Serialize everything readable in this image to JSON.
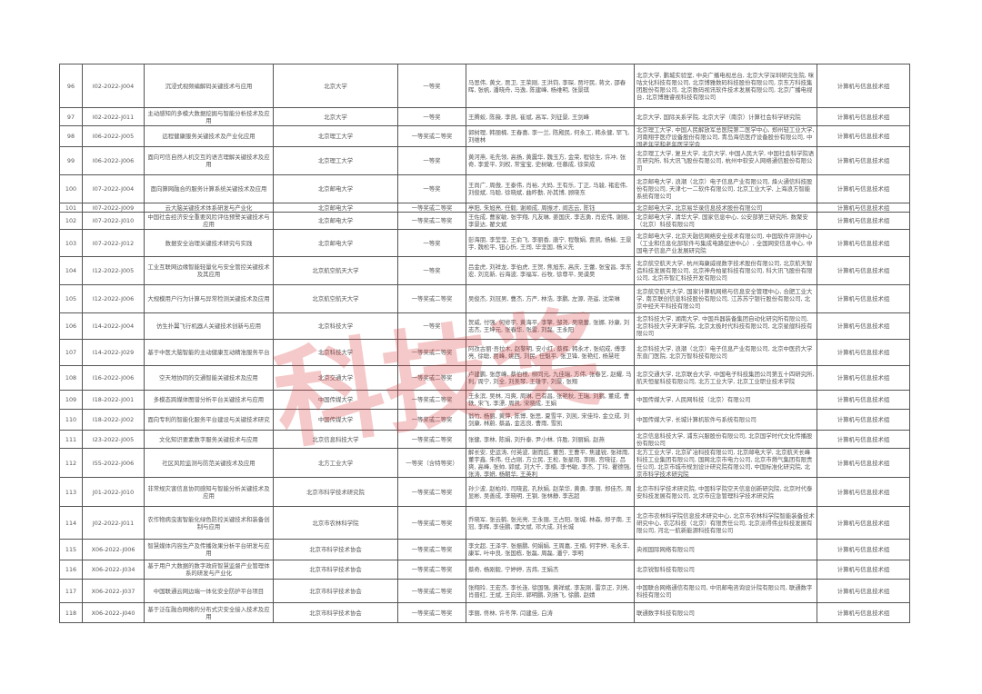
{
  "watermark": "科技奖",
  "rows": [
    {
      "no": "96",
      "code": "I02-2022-J004",
      "project": "沉浸式视频编解码关键技术与应用",
      "institution": "北京大学",
      "award": "一等奖",
      "persons": "马思伟, 黄文, 贾卫, 王荣刚, 王洪钧, 李琛, 贾圩民, 蒋文, 邵春晖, 张帆, 潘晓舟, 马逸, 陈建峰, 杨维明, 张景琪",
      "units": "北京大学, 鹏城实验室, 中央广播电视总台, 北京大学深圳研究生院, 咪咕文化科技有限公司, 北京博雅数码科技股份有限公司, 京东方科技集团股份有限公司, 北京数码视讯软件技术发展有限公司, 北京广播电视台, 北京博雅睿视科技有限公司",
      "category": "计算机与信息技术组"
    },
    {
      "no": "97",
      "code": "I02-2022-J011",
      "project": "主动感知的多模大数据挖掘与智能分析技术及应用",
      "institution": "北京大学",
      "award": "一等奖",
      "persons": "王腾蛟, 陈薇, 李凯, 崔斌, 高军, 刘征景, 王剑峰",
      "units": "北京大学, 国际关系学院, 北京大学（南京）计算社会科学研究院",
      "category": "计算机与信息技术组"
    },
    {
      "no": "98",
      "code": "I06-2022-J005",
      "project": "远程健康服务关键技术及产业化应用",
      "institution": "北京理工大学",
      "award": "一等奖或二等奖",
      "persons": "郭树理, 韩丽楠, 王春喜, 李一兰, 陈殿民, 何永工, 韩永健, 罕飞, 刘维林",
      "units": "北京理工大学, 中国人民解放军总医院第二医学中心, 郑州轻工业大学, 河南翔宇医疗设备股份有限公司, 青岛海信医疗设备股份有限公司, 中国老年学和老年医学学会",
      "category": "计算机与信息技术组"
    },
    {
      "no": "99",
      "code": "I06-2022-J006",
      "project": "面向可信自然人机交互的语言理解关键技术及应用",
      "institution": "北京理工大学",
      "award": "一等奖",
      "persons": "黄河燕, 毛先领, 高扬, 黄震华, 魏玉方, 金荣, 程徐生, 许冲, 张奇, 李爱平, 刘权, 常宝宝, 史树敏, 任慕成, 徐荣成",
      "units": "北京理工大学, 复旦大学, 北京大学, 中国人民大学, 中国社会科学院语言研究所, 科大讯飞股份有限公司, 杭州中软安人网络通信股份有限公司",
      "category": "计算机与信息技术组"
    },
    {
      "no": "100",
      "code": "I07-2022-J004",
      "project": "面向算网融合的服务计算系统关键技术及应用",
      "institution": "北京邮电大学",
      "award": "一等奖",
      "persons": "王尚广, 周傲, 王泰伟, 肖裕, 大妈, 王有乐, 丁正, 马骏, 褚宏伟, 刘俊斌, 马聪, 徐晓斌, 曲昨勤, 孙其博, 顾晓东",
      "units": "北京邮电大学, 浪潮（北京）电子信息产业有限公司, 烽火通信科技股份有限公司, 天津七一二软件有限公司, 北京工业大学, 上海浪方智能系统有限公司",
      "category": "计算机与信息技术组"
    },
    {
      "no": "101",
      "code": "I07-2022-J009",
      "project": "云大脑关键技术体系研发与产业化",
      "institution": "北京邮电大学",
      "award": "一等奖或二等奖",
      "persons": "亭阳, 朱旭亮, 任毅, 谢顺成, 周振才, 阎志云, 陈钰",
      "units": "北京邮电大学, 北京易华录信息技术股份有限公司",
      "category": "计算机与信息技术组"
    },
    {
      "no": "102",
      "code": "I07-2022-J010",
      "project": "中国社会经济安全重要风险评估预警关键技术与应用",
      "institution": "北京邮电大学",
      "award": "一等奖或二等奖",
      "persons": "王佐成, 曹家敏, 张宇翔, 凡友琳, 姜国庆, 李志勇, 肖宏伟, 谢刚, 李景达, 翟文斌",
      "units": "北京邮电大学, 清华大学, 国家信息中心, 公安部第三研究所, 数聚安（北京）科技有限公司",
      "category": "计算机与信息技术组"
    },
    {
      "no": "103",
      "code": "I07-2022-J012",
      "project": "数据安全治理关键技术研究与实践",
      "institution": "北京邮电大学",
      "award": "一等奖",
      "persons": "彭海朋, 李莹莹, 王俞飞, 李丽香, 唐宁, 程敬娟, 贾凯, 杨榆, 王景宇, 魏松平, 钮心忻, 王闯, 毕坚国, 杨义先",
      "units": "北京邮电大学, 北京天融信网络安全技术有限公司, 中国软件评测中心（工业和信息化部软件与集成电路促进中心）, 全国网安信息中心, 中国电子信息产业发展研究院",
      "category": "计算机与信息技术组"
    },
    {
      "no": "104",
      "code": "I12-2022-J005",
      "project": "工业互联网边缘智能轻量化与安全管控关键技术及其应用",
      "institution": "北京航空航天大学",
      "award": "一等奖",
      "persons": "吕金虎, 刘祥龙, 李伯虎, 王贺, 焦旭东, 高庆, 王蕾, 张宝昌, 李东宏, 刘克新, 谷海波, 李福军, 谷牧, 徐尊平, 吴谟昊",
      "units": "北京航空航天大学, 杭州海康威视数字技术股份有限公司, 北京航天智造科技发展有限公司, 北京神舟柏星科技有限公司, 科大讯飞股份有限公司, 北京市智汇科技开发有限公司",
      "category": "计算机与信息技术组"
    },
    {
      "no": "105",
      "code": "I12-2022-J006",
      "project": "大规模用户行为计算与异常检测关键技术及应用",
      "institution": "北京航空航天大学",
      "award": "一等奖或二等奖",
      "persons": "吴俊杰, 刘冠男, 曹杰, 方严, 林浩, 李鹏, 左源, 尧遥, 沈荣琳",
      "units": "北京航空航天大学, 国家计算机网络与信息安全管理中心, 合肥工业大学, 南京联创信息科技股份有限公司, 江苏苏宁银行股份有限公司, 北京中经天平科技有限公司",
      "category": "计算机与信息技术组"
    },
    {
      "no": "106",
      "code": "I14-2022-J004",
      "project": "仿生扑翼飞行机器人关键技术创新与应用",
      "institution": "北京科技大学",
      "award": "一等奖",
      "persons": "贺威, 付强, 何修宇, 黄海平, 李擎, 邹尧, 吴晓蕾, 张娜, 孙康, 刘志杰, 王坤元, 张春华, 张雷, 刘磊, 王永阳",
      "units": "北京科技大学, 湖南大学, 中国兵器装备集团自动化研究所有限公司, 北京科技大学天津学院, 北京太极时代科技有限公司, 北京星舰科技有限公司",
      "category": "计算机与信息技术组"
    },
    {
      "no": "107",
      "code": "I14-2022-J029",
      "project": "基于中医大脑智能的主动健康互动精准服务平台",
      "institution": "北京科技大学",
      "award": "一等奖或二等奖",
      "persons": "阿孜古丽·吾拉木, 赵黎明, 安小红, 蔡辉, 韩永才, 张绍成, 傅李亮, 徐聪, 贾峰, 姚西, 刘民, 任魁平, 张卫锋, 张艳红, 杨慧旺",
      "units": "北京科技大学, 浪潮（北京）电子信息产业有限公司, 北京中医药大学东直门医院, 北京万智科技有限公司",
      "category": "计算机与信息技术组"
    },
    {
      "no": "108",
      "code": "I16-2022-J006",
      "project": "空天地协同的交通智能关键技术及应用",
      "institution": "北京交通大学",
      "award": "一等奖或二等奖",
      "persons": "卢建鹏, 张彦峰, 蔡伯根, 柳同元, 九佳瑞, 方伟, 张春艺, 赵耀, 马利, 周宁, 刘全, 刘美琴, 王雄宇, 刘景, 张翔",
      "units": "北京交通大学, 北京联合大学, 中国电子科技集团公司第五十四研究所, 航天恒星科技有限公司, 北方工业大学, 北京工业职业技术学院",
      "category": "计算机与信息技术组"
    },
    {
      "no": "109",
      "code": "I18-2022-J001",
      "project": "多模态跨媒体图谱分析平台关键技术与应用",
      "institution": "中国传媒大学",
      "award": "一等奖或二等奖",
      "persons": "王永滨, 吴林, 冯爽, 周琳, 巴有昌, 张艳秋, 王瑞, 刘鹏, 董成, 曹轶, 宋飞, 李漂, 周凯, 宋晓成, 王娟",
      "units": "中国传媒大学, 人民网科技（北京）有限公司",
      "category": "计算机与信息技术组"
    },
    {
      "no": "110",
      "code": "I18-2022-J002",
      "project": "面向专利的智能化服务平台建设与关键技术研究",
      "institution": "中国传媒大学",
      "award": "一等奖或二等奖",
      "persons": "翁竹, 杨丽, 黄萍, 陈博, 张思, 夏雪平, 刘凯, 宋佳玲, 金立成, 刘剑康, 林蔚, 蔡晶, 金志良, 曹雨, 雪凯",
      "units": "中国传媒大学, 长城计算机软件与系统有限公司",
      "category": "计算机与信息技术组"
    },
    {
      "no": "111",
      "code": "I23-2022-J005",
      "project": "文化知识要素数字服务关键技术与应用",
      "institution": "北京信息科技大学",
      "award": "一等奖或二等奖",
      "persons": "张健, 李林, 陈娟, 刘升泰, 尹小林, 许胜, 刘丽娟, 赵燕",
      "units": "北京信息科技大学, 浦东兴服股份有限公司, 北京国学时代文化传播股份有限公司",
      "category": "计算机与信息技术组"
    },
    {
      "no": "112",
      "code": "I55-2022-J006",
      "project": "社区风险监测与防范关键技术及应用",
      "institution": "北方工业大学",
      "award": "一等奖（含特等奖）",
      "persons": "解长安, 史运涛, 付英波, 谢而后, 董哲, 王曹平, 焦建锐, 张祥雨, 董宇鑫, 朱伟, 任占刚, 方立民, 王松, 张星阳, 李刚, 宫晓征, 吕爽, 高峰, 张帅, 郭斌, 刘大千, 李楠, 李书敏, 李杰, 丁玲, 瞿德强, 张涛, 李妍, 杨朝华, 王英利",
      "units": "北方工业大学, 北京矿冶科技有限公司, 北京邮电大学, 北京航天长峰科技工业集团有限公司, 国网北京市电力公司, 北京市燃气集团有限责任公司, 北京市城市规划设计研究院有限公司, 中国标准化研究院, 北京市科学技术研究院",
      "category": "计算机与信息技术组"
    },
    {
      "no": "113",
      "code": "J01-2022-J010",
      "project": "非常规灾害信息协同感知与智能分析关键技术及应用",
      "institution": "北京市科学技术研究院",
      "award": "一等奖或二等奖",
      "persons": "孙少波, 赵柏玲, 司晓蓝, 孔秋娟, 赵荣华, 黄勇, 李丽, 郑佳杰, 周显彬, 吴善成, 李晓明, 王钢, 张林静, 李志超",
      "units": "北京市科学技术研究院, 中国科学院空天信息创新研究院, 北京时代泰安科技发展有限公司, 北京市应急管理科学技术研究院",
      "category": "计算机与信息技术组"
    },
    {
      "no": "114",
      "code": "J02-2022-J011",
      "project": "农作物病虫害智能化绿色防控关键技术和装备创制与应用",
      "institution": "北京市农林科学院",
      "award": "一等奖或二等奖",
      "persons": "乔晓军, 张云鹤, 张光亮, 王永丽, 王占阳, 张城, 林森, 郑子南, 王冠, 李辉, 李佳鹏, 谭文斌, 邓大成, 刘长城",
      "units": "北京市农林科学院信息技术研究中心, 北京市农林科学院智能装备技术研究中心, 农芯科技（北京）有限责任公司, 北京派得伟业科技发展有限公司, 河北一航新能源科技有限公司",
      "category": "计算机与信息技术组"
    },
    {
      "no": "115",
      "code": "X06-2022-J006",
      "project": "智慧媒体内容生产及传播效果分析平台研发与应用",
      "institution": "北京市科学技术协会",
      "award": "一等奖或二等奖",
      "persons": "李文超, 王泽宇, 张振鹏, 何娟娟, 王周嘉, 王楠, 何宇婷, 毛永丰, 康军, 叶中良, 张国栋, 张磊, 周磊, 潘宁, 李明",
      "units": "央视国际网络有限公司",
      "category": "计算机与信息技术组"
    },
    {
      "no": "116",
      "code": "X06-2022-J034",
      "project": "基于用户大数据的数字政府智慧监督产业管理体系的研发与产业化",
      "institution": "北京市科学技术协会",
      "award": "一等奖或二等奖",
      "persons": "蔡奇, 杨刚毅, 宁婷婷, 吉炜, 王娟杰",
      "units": "北京锐智科技有限公司",
      "category": "计算机与信息技术组"
    },
    {
      "no": "117",
      "code": "X06-2022-J037",
      "project": "中国联通云网边端一体化安全防护平台项目",
      "institution": "北京市科学技术协会",
      "award": "一等奖或二等奖",
      "persons": "张翔玲, 王宏杰, 李长连, 徐国强, 黄祥斌, 李友刚, 雷京正, 刘亮, 肖晋红, 王斌, 王向毕, 郭明鹏, 刘扬飞, 徐鹏, 赵婧",
      "units": "中国联合网络通信有限公司, 中讯邮电咨询设计院有限公司, 联通数字科技有限公司",
      "category": "计算机与信息技术组"
    },
    {
      "no": "118",
      "code": "X06-2022-J040",
      "project": "基于泛在融合网络的分布式灾安全接入技术及应用",
      "institution": "北京市科学技术协会",
      "award": "一等奖或二等奖",
      "persons": "李丽, 佟林, 许冬萍, 闫建佳, 白涛",
      "units": "联通数字科技有限公司",
      "category": "计算机与信息技术组"
    }
  ]
}
